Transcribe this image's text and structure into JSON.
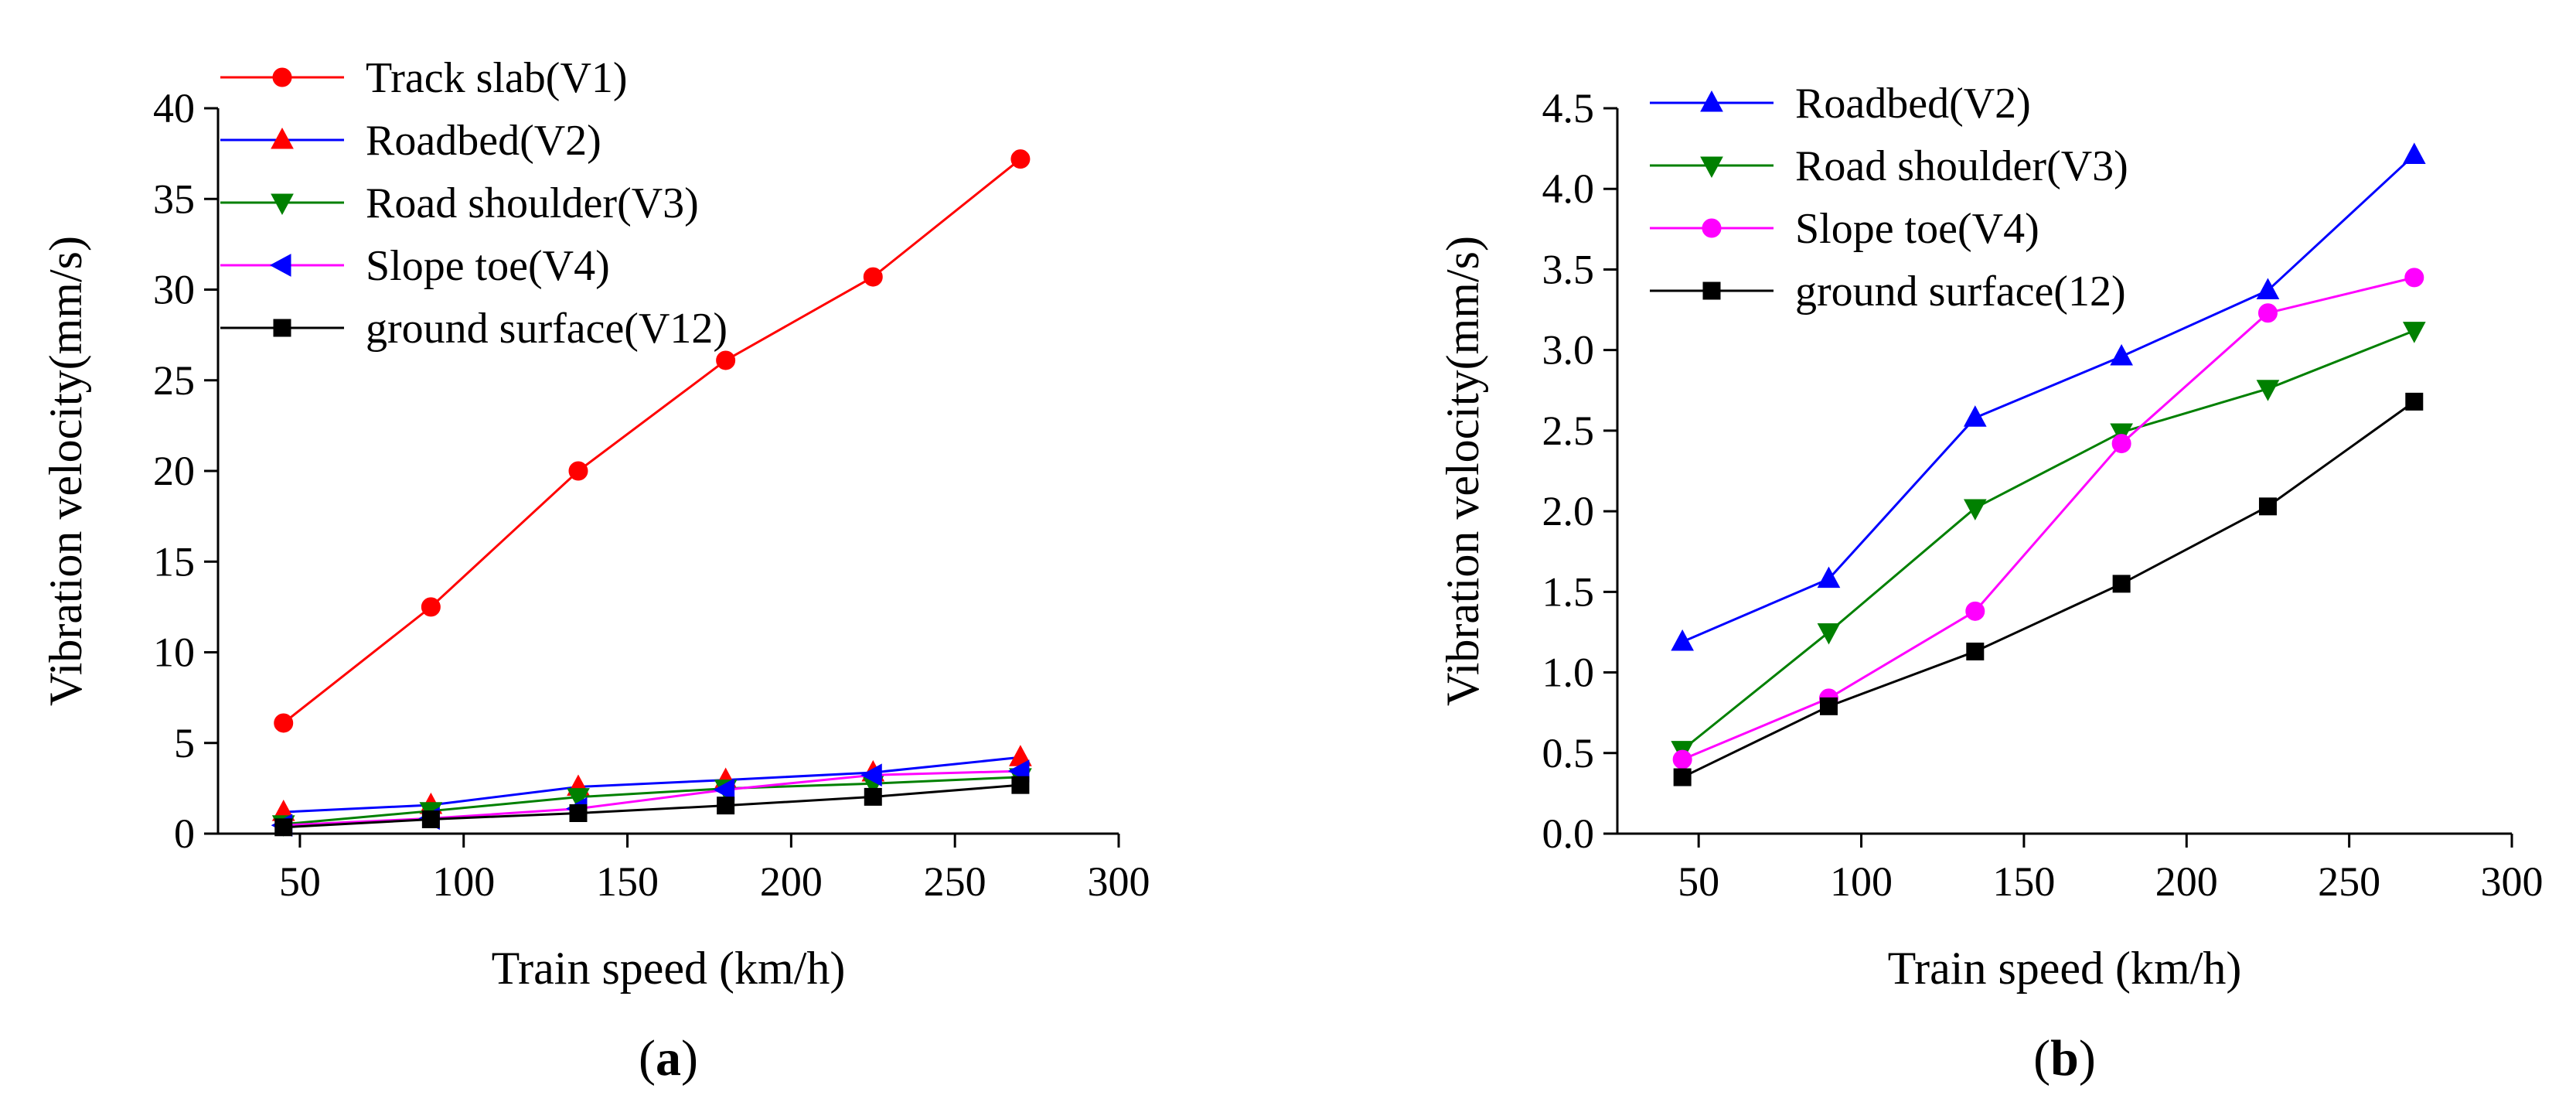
{
  "chart_data": [
    {
      "type": "line",
      "panel_label": "a",
      "xlabel": "Train speed (km/h)",
      "ylabel": "Vibration velocity(mm/s)",
      "xlim": [
        25,
        300
      ],
      "ylim": [
        0,
        40
      ],
      "xticks": [
        50,
        100,
        150,
        200,
        250,
        300
      ],
      "yticks": [
        0,
        5,
        10,
        15,
        20,
        25,
        30,
        35,
        40
      ],
      "grid": false,
      "legend_position": "top-left",
      "x": [
        45,
        90,
        135,
        180,
        225,
        270
      ],
      "series": [
        {
          "name": "Track slab(V1)",
          "color": "#ff0000",
          "marker": "circle",
          "values": [
            6.1,
            12.5,
            20.0,
            26.1,
            30.7,
            37.2
          ]
        },
        {
          "name": "Roadbed(V2)",
          "color": "#0000ff",
          "marker_color": "#ff0000",
          "marker": "triangle-up",
          "values": [
            1.19,
            1.58,
            2.58,
            2.96,
            3.37,
            4.21
          ]
        },
        {
          "name": "Road shoulder(V3)",
          "color": "#008000",
          "marker": "triangle-down",
          "values": [
            0.52,
            1.25,
            2.02,
            2.49,
            2.76,
            3.12
          ]
        },
        {
          "name": "Slope toe(V4)",
          "color": "#ff00ff",
          "marker_color": "#0000ff",
          "marker": "triangle-left",
          "values": [
            0.46,
            0.84,
            1.38,
            2.42,
            3.23,
            3.45
          ]
        },
        {
          "name": "ground surface(V12)",
          "color": "#000000",
          "marker": "square",
          "values": [
            0.35,
            0.79,
            1.13,
            1.55,
            2.03,
            2.68
          ]
        }
      ]
    },
    {
      "type": "line",
      "panel_label": "b",
      "xlabel": "Train speed (km/h)",
      "ylabel": "Vibration velocity(mm/s)",
      "xlim": [
        25,
        300
      ],
      "ylim": [
        0,
        4.5
      ],
      "xticks": [
        50,
        100,
        150,
        200,
        250,
        300
      ],
      "yticks": [
        0.0,
        0.5,
        1.0,
        1.5,
        2.0,
        2.5,
        3.0,
        3.5,
        4.0,
        4.5
      ],
      "grid": false,
      "legend_position": "top-left",
      "x": [
        45,
        90,
        135,
        180,
        225,
        270
      ],
      "series": [
        {
          "name": "Roadbed(V2)",
          "color": "#0000ff",
          "marker": "triangle-up",
          "values": [
            1.19,
            1.58,
            2.58,
            2.96,
            3.37,
            4.21
          ]
        },
        {
          "name": "Road shoulder(V3)",
          "color": "#008000",
          "marker": "triangle-down",
          "values": [
            0.52,
            1.25,
            2.02,
            2.49,
            2.76,
            3.12
          ]
        },
        {
          "name": "Slope toe(V4)",
          "color": "#ff00ff",
          "marker": "circle",
          "values": [
            0.46,
            0.84,
            1.38,
            2.42,
            3.23,
            3.45
          ]
        },
        {
          "name": "ground surface(12)",
          "color": "#000000",
          "marker": "square",
          "values": [
            0.35,
            0.79,
            1.13,
            1.55,
            2.03,
            2.68
          ]
        }
      ]
    }
  ]
}
